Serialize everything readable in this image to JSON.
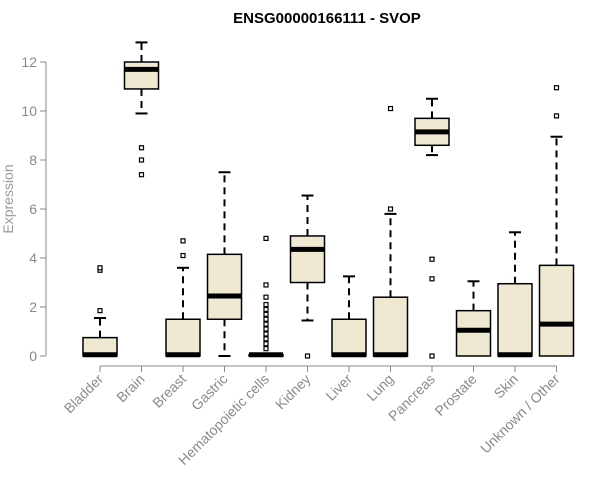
{
  "chart_data": {
    "type": "box",
    "title": "ENSG00000166111 - SVOP",
    "ylabel": "Expression",
    "xlabel": "",
    "ylim": [
      0,
      12.8
    ],
    "yticks": [
      0,
      2,
      4,
      6,
      8,
      10,
      12
    ],
    "grid": false,
    "colors": {
      "box_fill": "#efe9d2",
      "stroke": "#000000",
      "axis": "#8a8a8a",
      "tick_text": "#8a8a8a"
    },
    "categories": [
      "Bladder",
      "Brain",
      "Breast",
      "Gastric",
      "Hematopoietic cells",
      "Kidney",
      "Liver",
      "Lung",
      "Pancreas",
      "Prostate",
      "Skin",
      "Unknown / Other"
    ],
    "boxes": [
      {
        "category": "Bladder",
        "whisker_low": 0,
        "q1": 0,
        "median": 0.05,
        "q3": 0.75,
        "whisker_high": 1.55,
        "outliers": [
          1.85,
          3.5,
          3.6
        ]
      },
      {
        "category": "Brain",
        "whisker_low": 9.9,
        "q1": 10.9,
        "median": 11.7,
        "q3": 12.0,
        "whisker_high": 12.8,
        "outliers": [
          8.5,
          8.0,
          7.4
        ]
      },
      {
        "category": "Breast",
        "whisker_low": 0,
        "q1": 0,
        "median": 0.05,
        "q3": 1.5,
        "whisker_high": 3.6,
        "outliers": [
          4.1,
          4.7
        ]
      },
      {
        "category": "Gastric",
        "whisker_low": 0,
        "q1": 1.5,
        "median": 2.45,
        "q3": 4.15,
        "whisker_high": 7.5,
        "outliers": []
      },
      {
        "category": "Hematopoietic cells",
        "whisker_low": 0,
        "q1": 0,
        "median": 0.05,
        "q3": 0.05,
        "whisker_high": 0.1,
        "outliers": [
          0.3,
          0.5,
          0.7,
          0.9,
          1.1,
          1.3,
          1.5,
          1.7,
          1.9,
          2.1,
          2.4,
          2.9,
          4.8
        ]
      },
      {
        "category": "Kidney",
        "whisker_low": 1.45,
        "q1": 3.0,
        "median": 4.35,
        "q3": 4.9,
        "whisker_high": 6.55,
        "outliers": [
          0
        ]
      },
      {
        "category": "Liver",
        "whisker_low": 0,
        "q1": 0,
        "median": 0.05,
        "q3": 1.5,
        "whisker_high": 3.25,
        "outliers": []
      },
      {
        "category": "Lung",
        "whisker_low": 0,
        "q1": 0,
        "median": 0.05,
        "q3": 2.4,
        "whisker_high": 5.8,
        "outliers": [
          6.0,
          10.1
        ]
      },
      {
        "category": "Pancreas",
        "whisker_low": 8.2,
        "q1": 8.6,
        "median": 9.15,
        "q3": 9.7,
        "whisker_high": 10.5,
        "outliers": [
          3.95,
          3.15,
          0
        ]
      },
      {
        "category": "Prostate",
        "whisker_low": 0,
        "q1": 0,
        "median": 1.05,
        "q3": 1.85,
        "whisker_high": 3.05,
        "outliers": []
      },
      {
        "category": "Skin",
        "whisker_low": 0,
        "q1": 0,
        "median": 0.05,
        "q3": 2.95,
        "whisker_high": 5.05,
        "outliers": []
      },
      {
        "category": "Unknown / Other",
        "whisker_low": 0,
        "q1": 0,
        "median": 1.3,
        "q3": 3.7,
        "whisker_high": 8.95,
        "outliers": [
          9.8,
          10.95
        ]
      }
    ]
  }
}
